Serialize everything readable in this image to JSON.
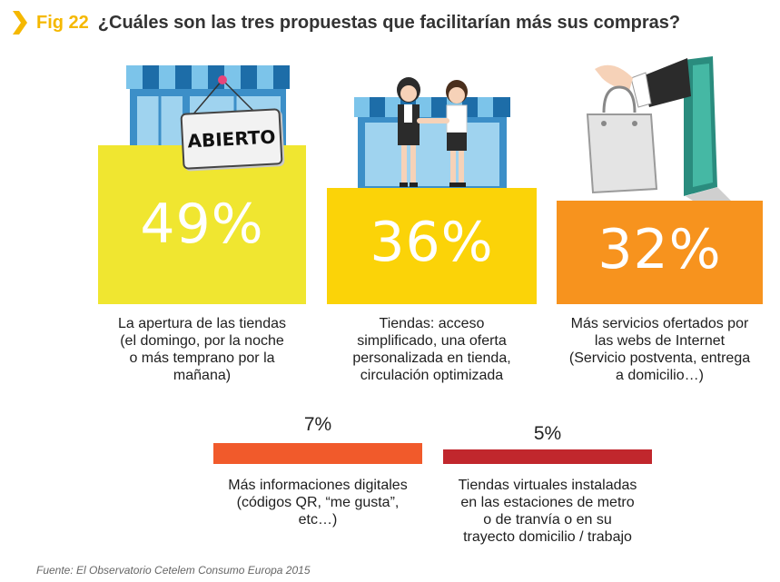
{
  "header": {
    "fig_label": "Fig 22",
    "title": "¿Cuáles son las tres propuestas que facilitarían más sus compras?"
  },
  "colors": {
    "accent": "#f5b800",
    "block1": "#f0e630",
    "block2": "#fbd308",
    "block3": "#f7931e",
    "bar4": "#f15a2b",
    "bar5": "#c1272d"
  },
  "chart_data": {
    "type": "bar",
    "title": "¿Cuáles son las tres propuestas que facilitarían más sus compras?",
    "unit": "%",
    "categories": [
      "La apertura de las tiendas (el domingo, por la noche o más temprano por la mañana)",
      "Tiendas: acceso simplificado, una oferta personalizada en tienda, circulación optimizada",
      "Más servicios ofertados por las webs de Internet (Servicio postventa, entrega a domicilio...)",
      "Más informaciones digitales (códigos QR, \"me gusta\", etc...)",
      "Tiendas virtuales instaladas en las estaciones de metro o de tranvía o en su trayecto domicilio / trabajo"
    ],
    "values": [
      49,
      36,
      32,
      7,
      5
    ],
    "labels": [
      "49%",
      "36%",
      "32%",
      "7%",
      "5%"
    ]
  },
  "items": [
    {
      "pct": "49%",
      "lines": [
        "La apertura de las tiendas",
        "(el domingo, por la noche",
        "o más temprano por la",
        "mañana)"
      ]
    },
    {
      "pct": "36%",
      "lines": [
        "Tiendas: acceso",
        "simplificado, una oferta",
        "personalizada en tienda,",
        "circulación optimizada"
      ]
    },
    {
      "pct": "32%",
      "lines": [
        "Más servicios ofertados por",
        "las webs de Internet",
        "(Servicio postventa, entrega",
        "a domicilio…)"
      ]
    },
    {
      "pct": "7%",
      "lines": [
        "Más informaciones digitales",
        "(códigos QR, “me gusta”,",
        "etc…)"
      ]
    },
    {
      "pct": "5%",
      "lines": [
        "Tiendas virtuales instaladas",
        "en las estaciones de metro",
        "o de tranvía o en su",
        "trayecto domicilio / trabajo"
      ]
    }
  ],
  "illustration": {
    "sign_text": "ABIERTO"
  },
  "footer": {
    "source": "Fuente: El Observatorio Cetelem Consumo Europa 2015"
  }
}
